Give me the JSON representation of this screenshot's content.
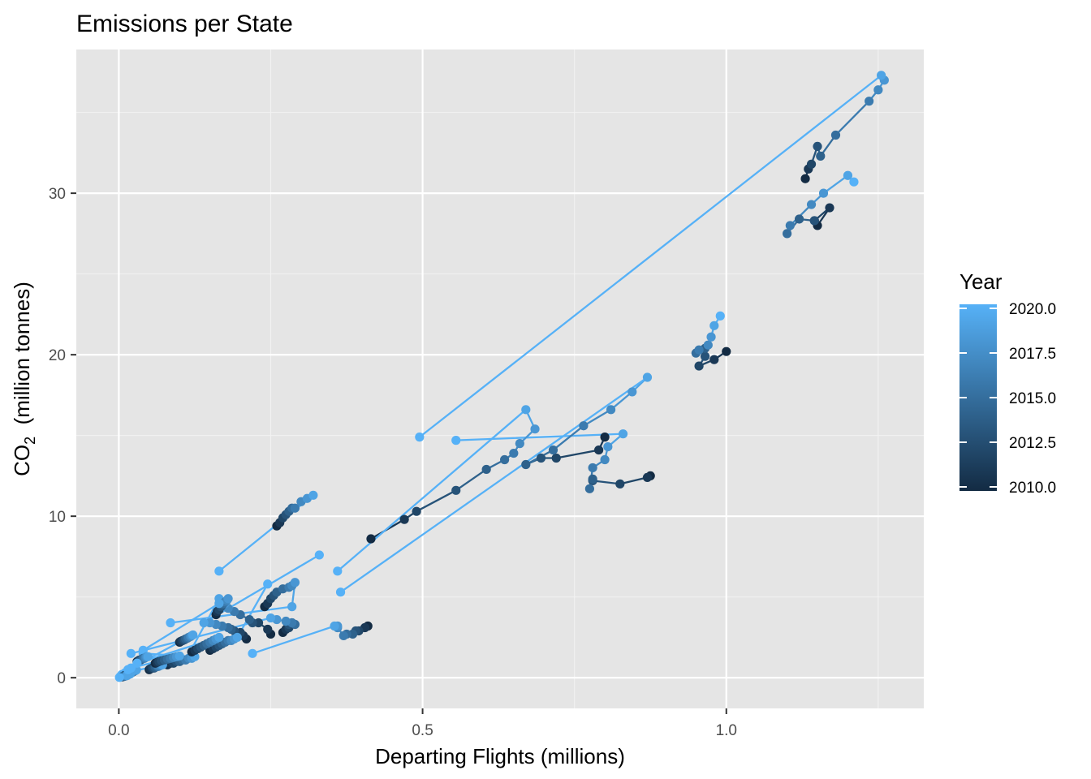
{
  "chart_data": {
    "type": "line",
    "title": "Emissions per State",
    "xlabel": "Departing Flights (millions)",
    "ylabel_main": "CO",
    "ylabel_sub": "2",
    "ylabel_rest": "  (million tonnes)",
    "xlim": [
      -0.07,
      1.325
    ],
    "ylim": [
      -1.9,
      38.9
    ],
    "x_ticks": [
      0.0,
      0.5,
      1.0
    ],
    "x_tick_labels": [
      "0.0",
      "0.5",
      "1.0"
    ],
    "y_ticks": [
      0,
      10,
      20,
      30
    ],
    "y_tick_labels": [
      "0",
      "10",
      "20",
      "30"
    ],
    "grid": true,
    "legend": {
      "title": "Year",
      "placement": "right",
      "labels": [
        "2020.0",
        "2017.5",
        "2015.0",
        "2012.5",
        "2010.0"
      ],
      "values": [
        2020,
        2017.5,
        2015,
        2012.5,
        2010
      ],
      "min": 2010,
      "max": 2020
    },
    "color_scale": {
      "low": "#132B43",
      "high": "#56B1F7"
    },
    "years": [
      2010,
      2011,
      2012,
      2013,
      2014,
      2015,
      2016,
      2017,
      2018,
      2019,
      2020
    ],
    "series": [
      {
        "x": [
          1.13,
          1.135,
          1.14,
          1.15,
          1.155,
          1.18,
          1.235,
          1.25,
          1.26,
          1.255,
          0.495
        ],
        "y": [
          30.9,
          31.5,
          31.8,
          32.9,
          32.3,
          33.6,
          35.7,
          36.4,
          37.0,
          37.3,
          14.9
        ]
      },
      {
        "x": [
          1.15,
          1.17,
          1.145,
          1.145,
          1.12,
          1.1,
          1.105,
          1.14,
          1.16,
          1.2,
          1.21
        ],
        "y": [
          28.0,
          29.1,
          28.3,
          28.3,
          28.4,
          27.5,
          28.0,
          29.3,
          30.0,
          31.1,
          30.7
        ]
      },
      {
        "x": [
          1.0,
          0.98,
          0.955,
          0.965,
          0.965,
          0.95,
          0.955,
          0.97,
          0.975,
          0.98,
          0.99
        ],
        "y": [
          20.2,
          19.7,
          19.3,
          19.9,
          20.4,
          20.1,
          20.3,
          20.6,
          21.1,
          21.8,
          22.4
        ]
      },
      {
        "x": [
          0.875,
          0.87,
          0.825,
          0.78,
          0.78,
          0.775,
          0.78,
          0.8,
          0.805,
          0.83,
          0.555
        ],
        "y": [
          12.5,
          12.4,
          12.0,
          12.2,
          12.3,
          11.7,
          13.0,
          13.5,
          14.3,
          15.1,
          14.7
        ]
      },
      {
        "x": [
          0.8,
          0.79,
          0.72,
          0.695,
          0.67,
          0.715,
          0.765,
          0.81,
          0.845,
          0.87,
          0.365
        ],
        "y": [
          14.9,
          14.1,
          13.6,
          13.6,
          13.2,
          14.1,
          15.6,
          16.6,
          17.7,
          18.6,
          5.3
        ]
      },
      {
        "x": [
          0.415,
          0.47,
          0.49,
          0.555,
          0.605,
          0.635,
          0.65,
          0.66,
          0.685,
          0.67,
          0.36
        ],
        "y": [
          8.6,
          9.8,
          10.3,
          11.6,
          12.9,
          13.5,
          13.9,
          14.5,
          15.4,
          16.6,
          6.6
        ]
      },
      {
        "x": [
          0.26,
          0.265,
          0.27,
          0.275,
          0.28,
          0.285,
          0.29,
          0.3,
          0.31,
          0.32,
          0.165
        ],
        "y": [
          9.4,
          9.6,
          9.9,
          10.1,
          10.3,
          10.5,
          10.5,
          10.9,
          11.1,
          11.3,
          6.6
        ]
      },
      {
        "x": [
          0.41,
          0.405,
          0.395,
          0.39,
          0.385,
          0.375,
          0.37,
          0.36,
          0.36,
          0.355,
          0.22
        ],
        "y": [
          3.2,
          3.1,
          2.9,
          2.9,
          2.7,
          2.7,
          2.6,
          3.1,
          3.2,
          3.2,
          1.5
        ]
      },
      {
        "x": [
          0.25,
          0.245,
          0.23,
          0.22,
          0.215,
          0.2,
          0.19,
          0.18,
          0.175,
          0.165,
          0.11
        ],
        "y": [
          2.7,
          3.0,
          3.4,
          3.4,
          3.6,
          3.9,
          4.1,
          4.3,
          4.6,
          4.9,
          1.1
        ]
      },
      {
        "x": [
          0.27,
          0.275,
          0.28,
          0.28,
          0.285,
          0.29,
          0.285,
          0.275,
          0.26,
          0.25,
          0.02
        ],
        "y": [
          2.8,
          3.0,
          3.1,
          3.3,
          3.4,
          3.3,
          3.4,
          3.5,
          3.6,
          3.7,
          1.5
        ]
      },
      {
        "x": [
          0.24,
          0.245,
          0.25,
          0.255,
          0.26,
          0.27,
          0.28,
          0.285,
          0.29,
          0.285,
          0.085
        ],
        "y": [
          4.4,
          4.6,
          4.9,
          5.1,
          5.3,
          5.5,
          5.6,
          5.7,
          5.9,
          4.4,
          3.4
        ]
      },
      {
        "x": [
          0.16,
          0.162,
          0.165,
          0.168,
          0.17,
          0.172,
          0.175,
          0.178,
          0.18,
          0.165,
          0.04
        ],
        "y": [
          3.9,
          4.1,
          4.2,
          4.4,
          4.5,
          4.6,
          4.7,
          4.8,
          4.9,
          4.6,
          1.7
        ]
      },
      {
        "x": [
          0.21,
          0.205,
          0.2,
          0.19,
          0.185,
          0.18,
          0.17,
          0.16,
          0.15,
          0.14,
          0.33
        ],
        "y": [
          2.4,
          2.6,
          2.8,
          2.9,
          3.0,
          3.1,
          3.2,
          3.3,
          3.4,
          3.4,
          7.6
        ]
      },
      {
        "x": [
          0.15,
          0.155,
          0.16,
          0.165,
          0.17,
          0.175,
          0.18,
          0.185,
          0.19,
          0.195,
          0.245
        ],
        "y": [
          1.7,
          1.8,
          1.9,
          2.0,
          2.1,
          2.2,
          2.3,
          2.3,
          2.4,
          2.5,
          5.8
        ]
      },
      {
        "x": [
          0.08,
          0.085,
          0.09,
          0.095,
          0.1,
          0.105,
          0.11,
          0.115,
          0.12,
          0.125,
          0.04
        ],
        "y": [
          0.8,
          0.9,
          0.9,
          1.0,
          1.0,
          1.1,
          1.1,
          1.2,
          1.2,
          1.3,
          1.5
        ]
      },
      {
        "x": [
          0.05,
          0.052,
          0.055,
          0.058,
          0.06,
          0.063,
          0.065,
          0.068,
          0.07,
          0.072,
          0.01
        ],
        "y": [
          0.5,
          0.55,
          0.6,
          0.6,
          0.65,
          0.7,
          0.7,
          0.75,
          0.8,
          0.8,
          0.3
        ]
      },
      {
        "x": [
          0.03,
          0.032,
          0.034,
          0.036,
          0.038,
          0.04,
          0.042,
          0.044,
          0.046,
          0.048,
          0.005
        ],
        "y": [
          1.0,
          1.05,
          1.1,
          1.1,
          1.15,
          1.2,
          1.2,
          1.25,
          1.3,
          1.3,
          0.2
        ]
      },
      {
        "x": [
          0.02,
          0.021,
          0.022,
          0.023,
          0.024,
          0.025,
          0.026,
          0.027,
          0.028,
          0.029,
          0.003
        ],
        "y": [
          0.3,
          0.32,
          0.34,
          0.36,
          0.38,
          0.4,
          0.42,
          0.44,
          0.46,
          0.48,
          0.1
        ]
      },
      {
        "x": [
          0.01,
          0.011,
          0.012,
          0.013,
          0.014,
          0.015,
          0.016,
          0.017,
          0.018,
          0.019,
          0.002
        ],
        "y": [
          0.15,
          0.16,
          0.17,
          0.18,
          0.19,
          0.2,
          0.21,
          0.22,
          0.23,
          0.24,
          0.05
        ]
      },
      {
        "x": [
          0.005,
          0.006,
          0.007,
          0.008,
          0.009,
          0.01,
          0.011,
          0.012,
          0.013,
          0.014,
          0.001
        ],
        "y": [
          0.05,
          0.06,
          0.07,
          0.08,
          0.09,
          0.1,
          0.11,
          0.12,
          0.13,
          0.14,
          0.02
        ]
      },
      {
        "x": [
          0.06,
          0.063,
          0.066,
          0.07,
          0.075,
          0.08,
          0.085,
          0.09,
          0.095,
          0.1,
          0.02
        ],
        "y": [
          0.9,
          0.95,
          1.0,
          1.05,
          1.1,
          1.15,
          1.2,
          1.25,
          1.3,
          1.35,
          0.6
        ]
      },
      {
        "x": [
          0.12,
          0.125,
          0.13,
          0.135,
          0.14,
          0.145,
          0.15,
          0.155,
          0.16,
          0.165,
          0.03
        ],
        "y": [
          1.6,
          1.7,
          1.8,
          1.9,
          2.0,
          2.1,
          2.2,
          2.3,
          2.4,
          2.5,
          0.9
        ]
      },
      {
        "x": [
          0.1,
          0.102,
          0.105,
          0.108,
          0.11,
          0.113,
          0.115,
          0.118,
          0.12,
          0.122,
          0.015
        ],
        "y": [
          2.2,
          2.25,
          2.3,
          2.35,
          2.4,
          2.45,
          2.5,
          2.55,
          2.6,
          2.65,
          0.5
        ]
      }
    ]
  }
}
